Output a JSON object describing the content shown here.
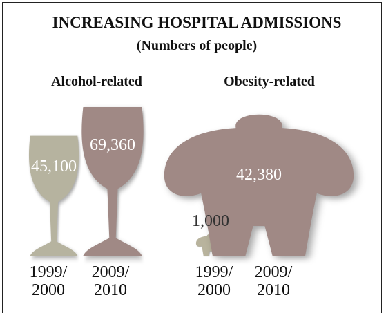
{
  "title": "INCREASING HOSPITAL ADMISSIONS",
  "subtitle": "(Numbers of people)",
  "chart_data": [
    {
      "type": "glass",
      "title": "Alcohol-related",
      "categories": [
        "1999/\n2000",
        "2009/\n2010"
      ],
      "values": [
        45100,
        69360
      ],
      "value_labels": [
        "45,100",
        "69,360"
      ],
      "colors": [
        "#b6b39f",
        "#a08985"
      ]
    },
    {
      "type": "figure",
      "title": "Obesity-related",
      "categories": [
        "1999/\n2000",
        "2009/\n2010"
      ],
      "values": [
        1000,
        42380
      ],
      "value_labels": [
        "1,000",
        "42,380"
      ],
      "colors": [
        "#b8b39d",
        "#a08985"
      ]
    }
  ]
}
